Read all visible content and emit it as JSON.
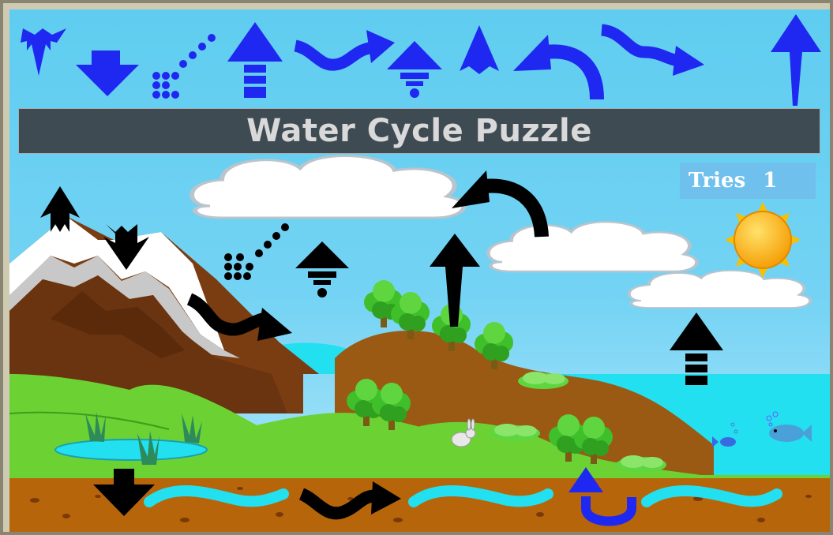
{
  "game": {
    "title": "Water Cycle Puzzle",
    "tries_label": "Tries",
    "tries_value": "1"
  },
  "colors": {
    "sky_top": "#5fcdf0",
    "sky_bottom": "#a9e3f8",
    "piece_blue": "#1f28f0",
    "placed_black": "#000000",
    "title_bar": "#3e4b52",
    "title_text": "#d9d9d9",
    "tries_box": "#6fc0ec",
    "water": "#22e0f0",
    "soil": "#b7650a",
    "grass": "#6cd233",
    "mountain": "#7a3d12",
    "sun": "#f7a800"
  },
  "tray_pieces": [
    {
      "name": "tray-piece-chevron-down",
      "icon": "chevron-down-arrow"
    },
    {
      "name": "tray-piece-block-down",
      "icon": "block-down-arrow"
    },
    {
      "name": "tray-piece-dotted-diagonal",
      "icon": "dotted-diagonal-arrow"
    },
    {
      "name": "tray-piece-striped-up",
      "icon": "striped-up-arrow"
    },
    {
      "name": "tray-piece-wavy-right",
      "icon": "wavy-right-arrow"
    },
    {
      "name": "tray-piece-dashed-up",
      "icon": "dashed-up-arrow"
    },
    {
      "name": "tray-piece-chevron-up",
      "icon": "chevron-up-arrow"
    },
    {
      "name": "tray-piece-curved-left",
      "icon": "curved-left-arrow"
    },
    {
      "name": "tray-piece-squiggle-right",
      "icon": "squiggle-right-arrow"
    },
    {
      "name": "tray-piece-tall-up",
      "icon": "tall-up-arrow"
    }
  ],
  "drop_slots": [
    {
      "name": "slot-mountain-up",
      "icon": "chevron-up-arrow"
    },
    {
      "name": "slot-mountain-down",
      "icon": "chevron-down-arrow"
    },
    {
      "name": "slot-snowmelt",
      "icon": "wavy-right-arrow"
    },
    {
      "name": "slot-condensation",
      "icon": "dotted-diagonal-arrow"
    },
    {
      "name": "slot-lake-evaporation",
      "icon": "dashed-up-arrow"
    },
    {
      "name": "slot-transpiration",
      "icon": "tall-up-arrow"
    },
    {
      "name": "slot-cloud-drift",
      "icon": "curved-left-arrow"
    },
    {
      "name": "slot-ocean-evaporation",
      "icon": "striped-up-arrow"
    },
    {
      "name": "slot-infiltration",
      "icon": "block-down-arrow"
    },
    {
      "name": "slot-groundwater-flow",
      "icon": "squiggle-right-arrow"
    },
    {
      "name": "slot-root-uptake",
      "icon": "u-turn-up-arrow"
    }
  ]
}
